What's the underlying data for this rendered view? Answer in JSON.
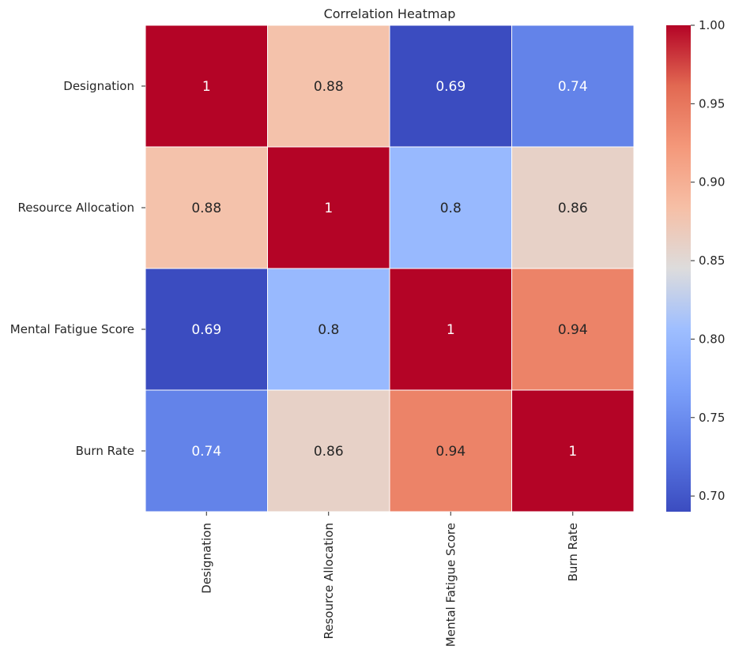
{
  "chart_data": {
    "type": "heatmap",
    "title": "Correlation Heatmap",
    "rows": [
      "Designation",
      "Resource Allocation",
      "Mental Fatigue Score",
      "Burn Rate"
    ],
    "columns": [
      "Designation",
      "Resource Allocation",
      "Mental Fatigue Score",
      "Burn Rate"
    ],
    "values": [
      [
        1.0,
        0.88,
        0.69,
        0.74
      ],
      [
        0.88,
        1.0,
        0.8,
        0.86
      ],
      [
        0.69,
        0.8,
        1.0,
        0.94
      ],
      [
        0.74,
        0.86,
        0.94,
        1.0
      ]
    ],
    "cell_labels": [
      [
        "1",
        "0.88",
        "0.69",
        "0.74"
      ],
      [
        "0.88",
        "1",
        "0.8",
        "0.86"
      ],
      [
        "0.69",
        "0.8",
        "1",
        "0.94"
      ],
      [
        "0.74",
        "0.86",
        "0.94",
        "1"
      ]
    ],
    "colormap": "coolwarm",
    "colorbar_range": [
      0.69,
      1.0
    ],
    "colorbar_ticks": [
      "0.70",
      "0.75",
      "0.80",
      "0.85",
      "0.90",
      "0.95",
      "1.00"
    ],
    "colorbar_tick_values": [
      0.7,
      0.75,
      0.8,
      0.85,
      0.9,
      0.95,
      1.0
    ],
    "cell_border_color": "#ffffff"
  }
}
